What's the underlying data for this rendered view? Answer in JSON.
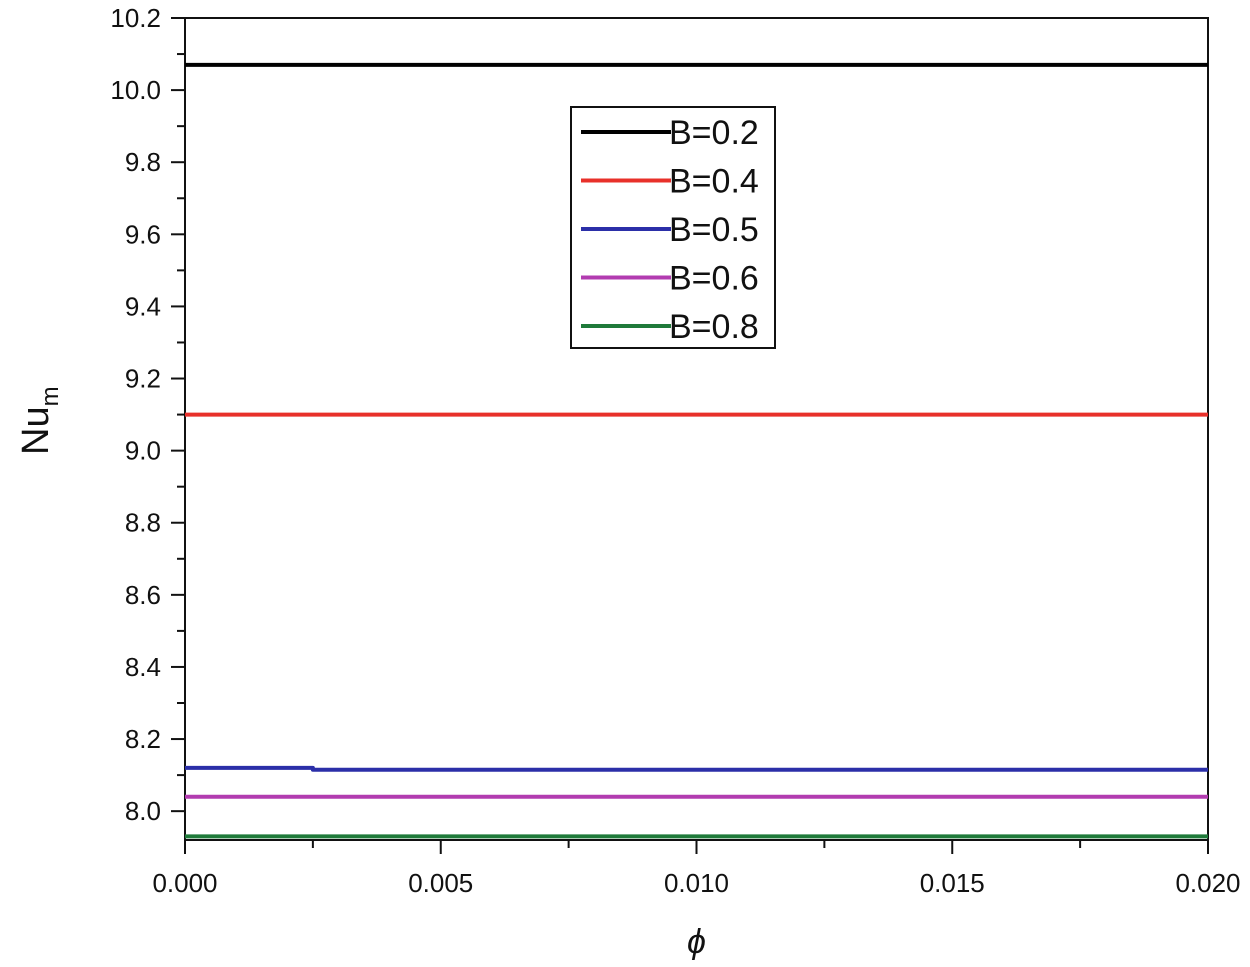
{
  "chart_data": {
    "type": "line",
    "xlabel": "ϕ",
    "ylabel": "Nu",
    "ylabel_subscript": "m",
    "xlim": [
      0.0,
      0.02
    ],
    "ylim": [
      7.92,
      10.2
    ],
    "x_ticks": [
      0.0,
      0.005,
      0.01,
      0.015,
      0.02
    ],
    "x_tick_labels": [
      "0.000",
      "0.005",
      "0.010",
      "0.015",
      "0.020"
    ],
    "y_ticks": [
      8.0,
      8.2,
      8.4,
      8.6,
      8.8,
      9.0,
      9.2,
      9.4,
      9.6,
      9.8,
      10.0,
      10.2
    ],
    "y_tick_labels": [
      "8.0",
      "8.2",
      "8.4",
      "8.6",
      "8.8",
      "9.0",
      "9.2",
      "9.4",
      "9.6",
      "9.8",
      "10.0",
      "10.2"
    ],
    "grid": false,
    "legend_position": "top-center",
    "series": [
      {
        "name": "B=0.2",
        "color": "#000000",
        "x": [
          0.0,
          0.02
        ],
        "y": [
          10.07,
          10.07
        ]
      },
      {
        "name": "B=0.4",
        "color": "#e8302a",
        "x": [
          0.0,
          0.02
        ],
        "y": [
          9.1,
          9.1
        ]
      },
      {
        "name": "B=0.5",
        "color": "#2b2fa8",
        "x": [
          0.0,
          0.0025,
          0.0025,
          0.02
        ],
        "y": [
          8.12,
          8.12,
          8.115,
          8.115
        ]
      },
      {
        "name": "B=0.6",
        "color": "#b23cb0",
        "x": [
          0.0,
          0.02
        ],
        "y": [
          8.04,
          8.04
        ]
      },
      {
        "name": "B=0.8",
        "color": "#1f7a3a",
        "x": [
          0.0,
          0.02
        ],
        "y": [
          7.93,
          7.93
        ]
      }
    ]
  }
}
